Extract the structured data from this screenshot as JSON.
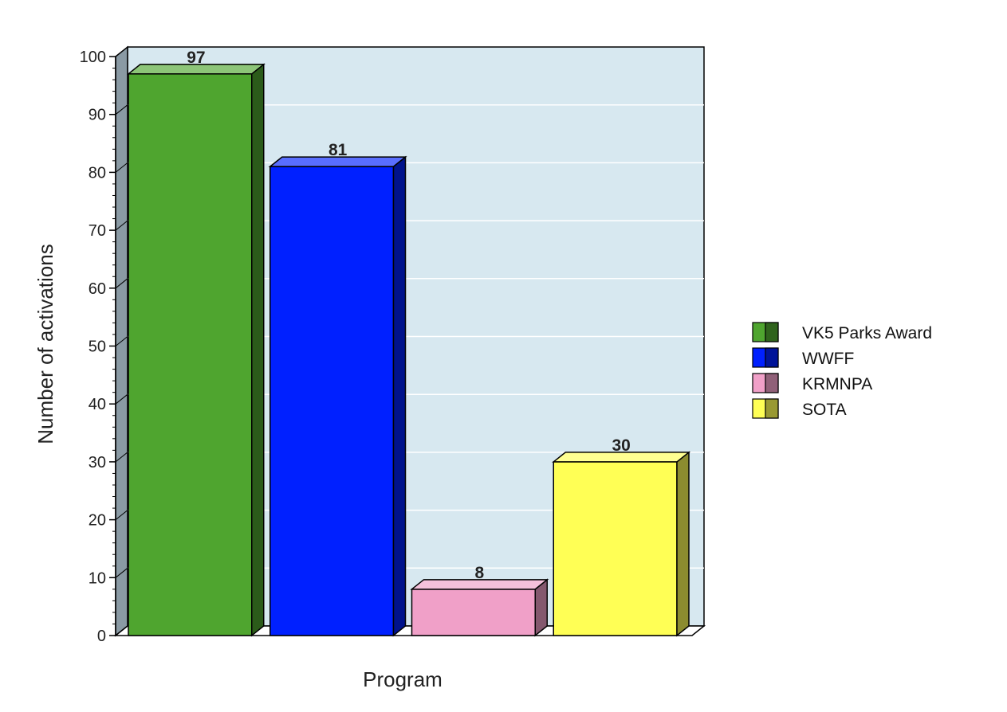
{
  "chart_data": {
    "type": "bar",
    "categories": [
      "VK5 Parks Award",
      "WWFF",
      "KRMNPA",
      "SOTA"
    ],
    "values": [
      97,
      81,
      8,
      30
    ],
    "colors": [
      "#4fa52f",
      "#0020ff",
      "#f0a0c8",
      "#ffff55"
    ],
    "title": "",
    "xlabel": "Program",
    "ylabel": "Number of activations",
    "ylim": [
      0,
      100
    ],
    "y_ticks": [
      "0",
      "10",
      "20",
      "30",
      "40",
      "50",
      "60",
      "70",
      "80",
      "90",
      "100"
    ],
    "grid": true,
    "style": "3d",
    "legend": {
      "position": "right",
      "entries": [
        "VK5 Parks Award",
        "WWFF",
        "KRMNPA",
        "SOTA"
      ]
    },
    "colors_theme": {
      "plot_background": "#d7e8f0",
      "grid": "#ffffff",
      "wall": "#8a9aa4"
    }
  }
}
